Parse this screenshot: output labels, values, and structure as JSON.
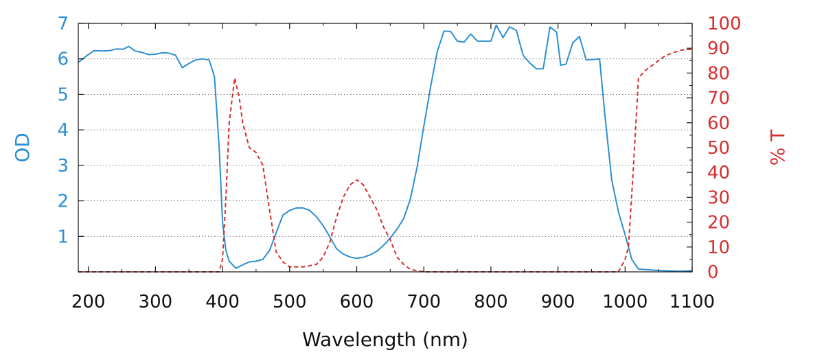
{
  "chart_data": {
    "type": "line",
    "xlabel": "Wavelength (nm)",
    "ylabel_left": "OD",
    "ylabel_right": "% T",
    "xlim": [
      185,
      1100
    ],
    "ylim_left": [
      0,
      7
    ],
    "ylim_right": [
      0,
      100
    ],
    "x_ticks": [
      200,
      300,
      400,
      500,
      600,
      700,
      800,
      900,
      1000,
      1100
    ],
    "y_left_ticks": [
      1,
      2,
      3,
      4,
      5,
      6,
      7
    ],
    "y_right_ticks": [
      0,
      10,
      20,
      30,
      40,
      50,
      60,
      70,
      80,
      90,
      100
    ],
    "grid": "horizontal dotted at OD ticks",
    "colors": {
      "od": "#2b8fd1",
      "transmission": "#d62f2f",
      "axis": "#111111"
    },
    "series": [
      {
        "axis": "left",
        "style": "solid",
        "x": [
          185,
          195,
          208,
          220,
          232,
          242,
          252,
          260,
          270,
          280,
          290,
          300,
          310,
          320,
          330,
          340,
          350,
          360,
          370,
          380,
          388,
          395,
          400,
          405,
          410,
          420,
          430,
          440,
          450,
          460,
          470,
          480,
          490,
          500,
          510,
          520,
          530,
          540,
          550,
          560,
          570,
          580,
          590,
          600,
          610,
          620,
          630,
          640,
          650,
          660,
          670,
          680,
          690,
          700,
          710,
          720,
          730,
          740,
          750,
          760,
          770,
          780,
          790,
          800,
          808,
          818,
          828,
          838,
          848,
          858,
          868,
          878,
          888,
          898,
          904,
          912,
          922,
          932,
          942,
          952,
          962,
          970,
          980,
          990,
          1000,
          1010,
          1020,
          1040,
          1060,
          1080,
          1100
        ],
        "values": [
          5.9,
          6.05,
          6.23,
          6.22,
          6.23,
          6.28,
          6.27,
          6.35,
          6.22,
          6.18,
          6.12,
          6.13,
          6.17,
          6.16,
          6.1,
          5.75,
          5.87,
          5.97,
          6.0,
          5.97,
          5.5,
          3.5,
          1.4,
          0.6,
          0.3,
          0.1,
          0.2,
          0.28,
          0.3,
          0.35,
          0.6,
          1.1,
          1.6,
          1.73,
          1.8,
          1.8,
          1.73,
          1.55,
          1.3,
          0.98,
          0.65,
          0.5,
          0.42,
          0.38,
          0.41,
          0.48,
          0.58,
          0.75,
          0.95,
          1.2,
          1.5,
          2.05,
          2.95,
          4.1,
          5.2,
          6.2,
          6.78,
          6.77,
          6.5,
          6.47,
          6.7,
          6.5,
          6.5,
          6.5,
          6.95,
          6.6,
          6.9,
          6.8,
          6.1,
          5.88,
          5.72,
          5.72,
          6.9,
          6.75,
          5.82,
          5.85,
          6.45,
          6.63,
          5.97,
          5.98,
          6.0,
          4.4,
          2.6,
          1.7,
          1.05,
          0.35,
          0.08,
          0.05,
          0.03,
          0.02,
          0.03
        ]
      },
      {
        "axis": "right",
        "style": "dashed",
        "x": [
          185,
          380,
          395,
          400,
          405,
          410,
          418,
          425,
          430,
          440,
          450,
          460,
          470,
          480,
          490,
          500,
          520,
          540,
          550,
          560,
          570,
          580,
          590,
          600,
          610,
          620,
          630,
          640,
          650,
          660,
          670,
          680,
          690,
          700,
          800,
          900,
          990,
          1000,
          1005,
          1012,
          1020,
          1030,
          1040,
          1060,
          1080,
          1090,
          1100
        ],
        "values": [
          0,
          0,
          0,
          5,
          30,
          60,
          78,
          70,
          60,
          50,
          48,
          43,
          25,
          8,
          4,
          2,
          2,
          3,
          6,
          12,
          22,
          30,
          35,
          37,
          35,
          30,
          25,
          18,
          13,
          6,
          3,
          1,
          0.5,
          0,
          0,
          0,
          0,
          5,
          10,
          40,
          78,
          81,
          83,
          87,
          89,
          89.5,
          89.5
        ]
      }
    ]
  }
}
